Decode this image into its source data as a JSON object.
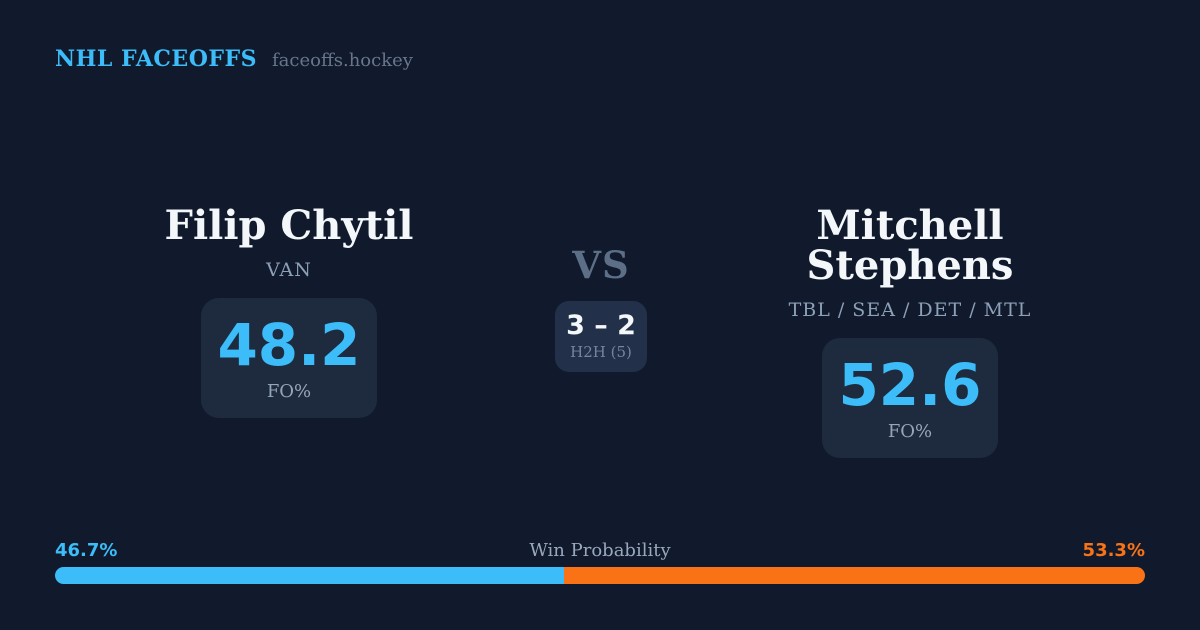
{
  "header": {
    "brand": "NHL FACEOFFS",
    "site": "faceoffs.hockey"
  },
  "matchup": {
    "left_player": {
      "name": "Filip Chytil",
      "teams": "VAN",
      "fo_pct": "48.2",
      "stat_label": "FO%"
    },
    "right_player": {
      "name": "Mitchell Stephens",
      "teams": "TBL / SEA / DET / MTL",
      "fo_pct": "52.6",
      "stat_label": "FO%"
    },
    "vs_label": "VS",
    "h2h": {
      "score": "3 – 2",
      "label": "H2H (5)"
    }
  },
  "win_probability": {
    "title": "Win Probability",
    "left_pct_label": "46.7%",
    "right_pct_label": "53.3%",
    "left_value": 46.7,
    "right_value": 53.3
  },
  "colors": {
    "background": "#101a2c",
    "card": "#1e2b3f",
    "h2h_box": "#223049",
    "accent_blue": "#3cbcf8",
    "accent_orange": "#f97316",
    "text_primary": "#f4f7fa",
    "text_muted": "#8da0b8"
  },
  "chart_data": {
    "type": "bar",
    "title": "Win Probability",
    "categories": [
      "Filip Chytil",
      "Mitchell Stephens"
    ],
    "series": [
      {
        "name": "Win Probability %",
        "values": [
          46.7,
          53.3
        ]
      },
      {
        "name": "Faceoff %",
        "values": [
          48.2,
          52.6
        ]
      },
      {
        "name": "H2H wins (last 5)",
        "values": [
          3,
          2
        ]
      }
    ],
    "legend_position": "none",
    "xlim": [
      0,
      100
    ]
  }
}
